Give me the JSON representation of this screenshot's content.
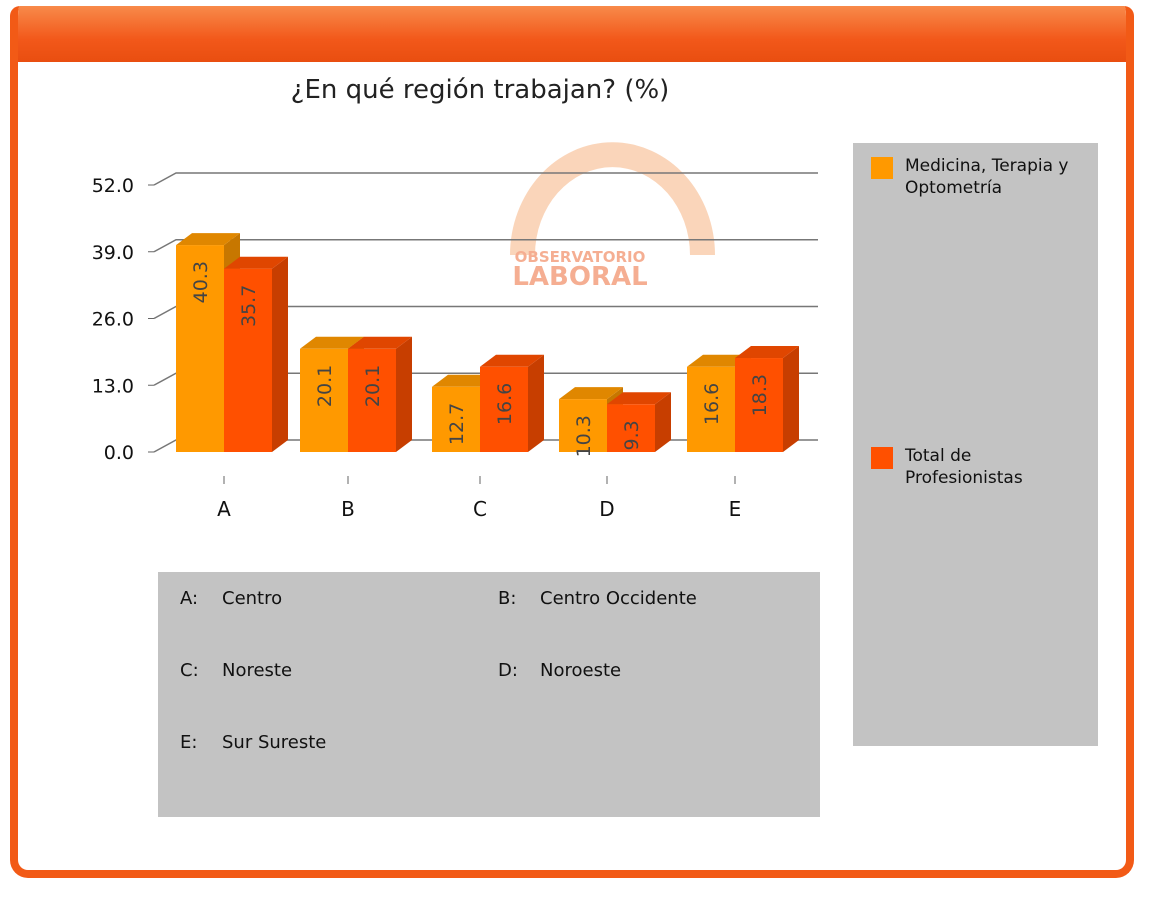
{
  "chart_data": {
    "type": "bar3d",
    "title": "¿En qué región trabajan? (%)",
    "categories": [
      "A",
      "B",
      "C",
      "D",
      "E"
    ],
    "series": [
      {
        "name": "Medicina, Terapia y Optometría",
        "color": "#ff9900",
        "values": [
          40.3,
          20.1,
          12.7,
          10.3,
          16.6
        ]
      },
      {
        "name": "Total de Profesionistas",
        "color": "#ff5000",
        "values": [
          35.7,
          20.1,
          16.6,
          9.3,
          18.3
        ]
      }
    ],
    "ylim": [
      0,
      52
    ],
    "yticks": [
      {
        "value": 0,
        "label": "0.0"
      },
      {
        "value": 13,
        "label": "13.0"
      },
      {
        "value": 26,
        "label": "26.0"
      },
      {
        "value": 39,
        "label": "39.0"
      },
      {
        "value": 52,
        "label": "52.0"
      }
    ],
    "grid": true,
    "legend": "right",
    "watermark": [
      "OBSERVATORIO",
      "LABORAL"
    ],
    "region_key": [
      {
        "letter": "A:",
        "name": "Centro"
      },
      {
        "letter": "B:",
        "name": "Centro Occidente"
      },
      {
        "letter": "C:",
        "name": "Noreste"
      },
      {
        "letter": "D:",
        "name": "Noroeste"
      },
      {
        "letter": "E:",
        "name": "Sur Sureste"
      }
    ]
  }
}
